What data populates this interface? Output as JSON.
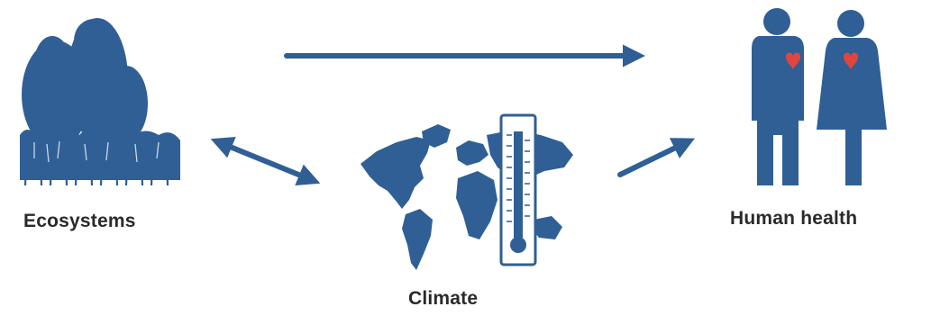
{
  "nodes": {
    "ecosystems": {
      "label": "Ecosystems",
      "icon": "forest-icon"
    },
    "climate": {
      "label": "Climate",
      "icon": "world-map-thermometer-icon"
    },
    "human_health": {
      "label": "Human health",
      "icon": "man-woman-hearts-icon"
    }
  },
  "edges": [
    {
      "from": "ecosystems",
      "to": "human_health",
      "direction": "one-way"
    },
    {
      "from": "ecosystems",
      "to": "climate",
      "direction": "two-way"
    },
    {
      "from": "climate",
      "to": "human_health",
      "direction": "one-way"
    }
  ],
  "colors": {
    "icon_blue": "#2f5f95",
    "heart_red": "#e0453f",
    "label_text": "#2a2a2a",
    "background": "#ffffff"
  }
}
